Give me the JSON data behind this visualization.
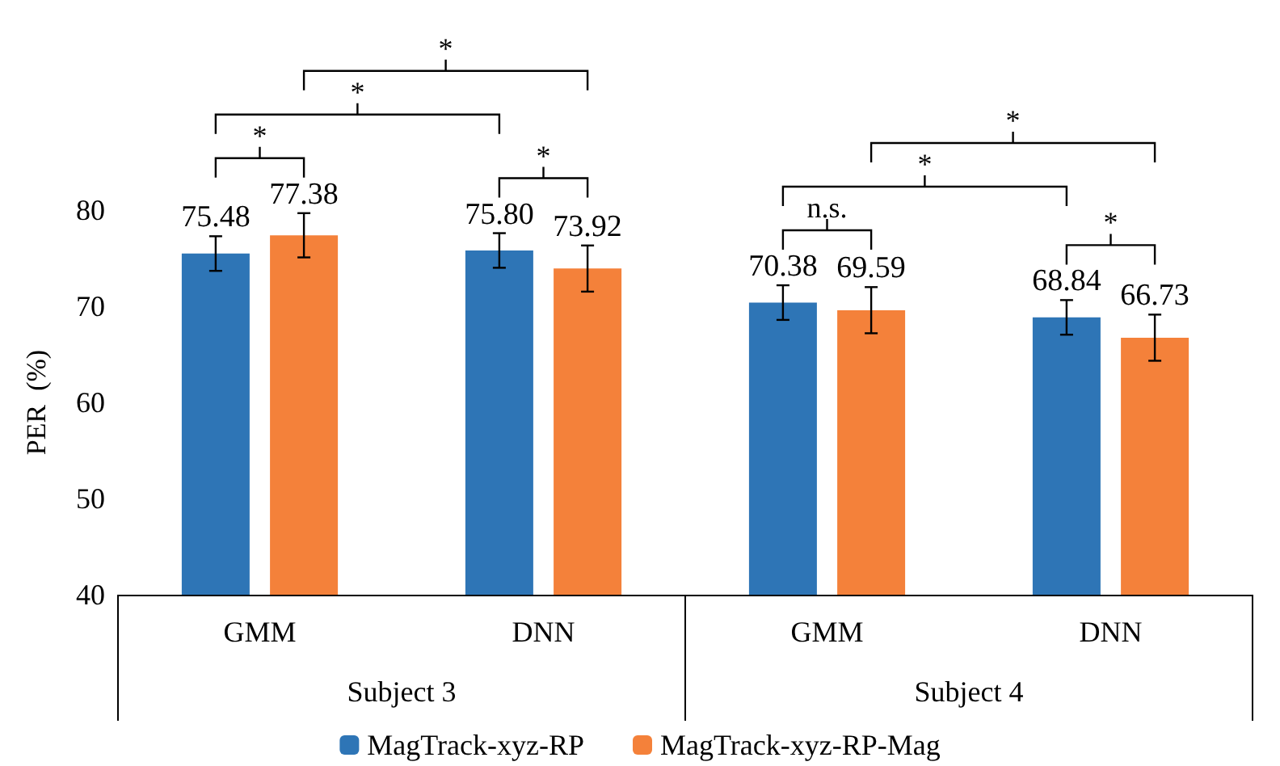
{
  "chart_data": {
    "type": "bar",
    "ylabel": "PER  (%)",
    "categories": [
      "GMM",
      "DNN",
      "GMM",
      "DNN"
    ],
    "series": [
      {
        "name": "MagTrack-xyz-RP",
        "color": "#2e75b6",
        "values": [
          75.48,
          75.8,
          70.38,
          68.84
        ],
        "errors": [
          1.8,
          1.8,
          1.8,
          1.8
        ],
        "value_labels": [
          "75.48",
          "75.80",
          "70.38",
          "68.84"
        ]
      },
      {
        "name": "MagTrack-xyz-RP-Mag",
        "color": "#f4813a",
        "values": [
          77.38,
          73.92,
          69.59,
          66.73
        ],
        "errors": [
          2.3,
          2.4,
          2.4,
          2.4
        ],
        "value_labels": [
          "77.38",
          "73.92",
          "69.59",
          "66.73"
        ]
      }
    ],
    "ylim": [
      40,
      80
    ],
    "yticks": [
      40,
      50,
      60,
      70,
      80
    ],
    "legend": "bottom",
    "grid": false,
    "annotations": [
      "*",
      "*",
      "*",
      "*",
      "n.s.",
      "*",
      "*",
      "*",
      "Subject 3",
      "Subject 4"
    ]
  }
}
